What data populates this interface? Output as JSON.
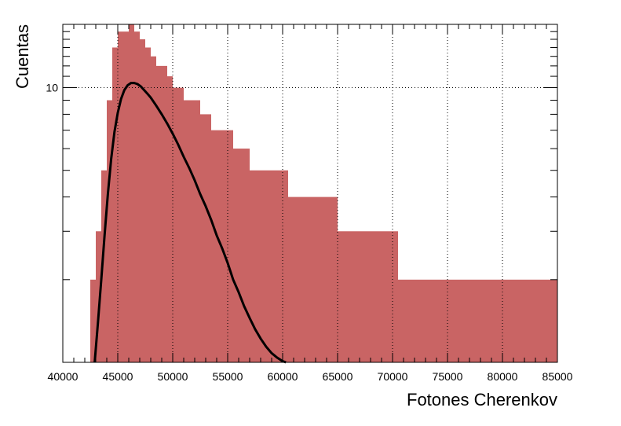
{
  "chart_data": {
    "type": "bar",
    "title": "",
    "xlabel": "Fotones Cherenkov",
    "ylabel": "Cuentas",
    "xlim": [
      40000,
      85000
    ],
    "ylim": [
      1.0,
      17.0
    ],
    "yscale": "log",
    "grid": true,
    "x_ticks": [
      40000,
      45000,
      50000,
      55000,
      60000,
      65000,
      70000,
      75000,
      80000,
      85000
    ],
    "x_tick_labels": [
      "40000",
      "45000",
      "50000",
      "55000",
      "60000",
      "65000",
      "70000",
      "75000",
      "80000",
      "85000"
    ],
    "y_tick_labels": [
      {
        "value": 10,
        "label": "10"
      }
    ],
    "series": [
      {
        "kind": "histogram",
        "color": "#c96464",
        "x": [
          42500,
          43000,
          43500,
          44000,
          44500,
          45000,
          45500,
          46000,
          46500,
          47000,
          47500,
          48000,
          48500,
          49000,
          49500,
          50000,
          50500,
          51000,
          51500,
          52000,
          52500,
          53000,
          53500,
          54000,
          54500,
          55000,
          55500,
          56000,
          56500,
          57000,
          57500,
          58000,
          58500,
          59000,
          59500,
          60000,
          60500,
          61000,
          61500,
          62000,
          62500,
          63000,
          63500,
          64000,
          64500,
          65000,
          65500,
          66000,
          66500,
          67000,
          67500,
          68000,
          68500,
          69000,
          69500,
          70000,
          70500,
          71000,
          71500,
          72000,
          72500,
          73000,
          73500,
          74000,
          74500,
          75000,
          75500,
          76000,
          76500,
          77000,
          77500,
          78000,
          78500,
          79000,
          79500,
          80000,
          80500,
          81000,
          81500,
          82000,
          82500,
          83000,
          83500,
          84000,
          84500
        ],
        "values": [
          2,
          3,
          5,
          9,
          14,
          16,
          16,
          17,
          16,
          15,
          14,
          13,
          12,
          12,
          11,
          10,
          10,
          9,
          9,
          9,
          8,
          8,
          7,
          7,
          7,
          7,
          6,
          6,
          6,
          5,
          5,
          5,
          5,
          5,
          5,
          5,
          4,
          4,
          4,
          4,
          4,
          4,
          4,
          4,
          4,
          3,
          3,
          3,
          3,
          3,
          3,
          3,
          3,
          3,
          3,
          3,
          2,
          2,
          2,
          2,
          2,
          2,
          2,
          2,
          2,
          2,
          2,
          2,
          2,
          2,
          2,
          2,
          2,
          2,
          2,
          2,
          2,
          2,
          2,
          2,
          2,
          2,
          2,
          2,
          2
        ]
      },
      {
        "kind": "line",
        "color": "#000000",
        "x": [
          42900,
          43200,
          43500,
          43800,
          44100,
          44400,
          44700,
          45000,
          45300,
          45600,
          45900,
          46200,
          46500,
          46800,
          47100,
          47400,
          47700,
          48000,
          48500,
          49000,
          49500,
          50000,
          50500,
          51000,
          51500,
          52000,
          52500,
          53000,
          53500,
          54000,
          54500,
          55000,
          55500,
          56000,
          56500,
          57000,
          57500,
          58000,
          58500,
          59000,
          59500,
          60000,
          60300
        ],
        "y": [
          1.0,
          1.4,
          2.0,
          2.9,
          4.1,
          5.5,
          6.9,
          8.1,
          9.1,
          9.8,
          10.2,
          10.4,
          10.4,
          10.3,
          10.1,
          9.8,
          9.5,
          9.2,
          8.6,
          8.0,
          7.4,
          6.8,
          6.2,
          5.6,
          5.1,
          4.6,
          4.1,
          3.7,
          3.3,
          2.9,
          2.6,
          2.3,
          2.0,
          1.8,
          1.6,
          1.45,
          1.32,
          1.22,
          1.14,
          1.08,
          1.04,
          1.01,
          1.0
        ]
      }
    ]
  }
}
